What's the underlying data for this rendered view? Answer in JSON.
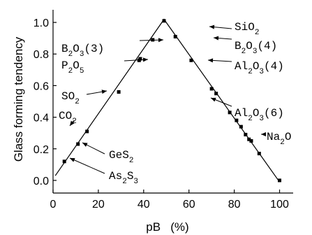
{
  "chart_data": {
    "type": "scatter",
    "xlabel": "pB   (%)",
    "ylabel": "Glass forming tendency",
    "xlim": [
      0,
      106
    ],
    "ylim": [
      -0.08,
      1.08
    ],
    "xticks": [
      "0",
      "20",
      "40",
      "60",
      "80",
      "100"
    ],
    "yticks": [
      "0.0",
      "0.2",
      "0.4",
      "0.6",
      "0.8",
      "1.0"
    ],
    "xtick_values": [
      0,
      20,
      40,
      60,
      80,
      100
    ],
    "ytick_values": [
      0.0,
      0.2,
      0.4,
      0.6,
      0.8,
      1.0
    ],
    "grid": false,
    "trend_line": [
      [
        1,
        0.03
      ],
      [
        49,
        1.02
      ],
      [
        100,
        -0.01
      ]
    ],
    "points": [
      {
        "x": 5,
        "y": 0.12
      },
      {
        "x": 11,
        "y": 0.23
      },
      {
        "x": 15,
        "y": 0.31
      },
      {
        "x": 29,
        "y": 0.56
      },
      {
        "x": 38,
        "y": 0.76
      },
      {
        "x": 38.5,
        "y": 0.77
      },
      {
        "x": 44,
        "y": 0.89
      },
      {
        "x": 49,
        "y": 1.01
      },
      {
        "x": 54,
        "y": 0.91
      },
      {
        "x": 61,
        "y": 0.76
      },
      {
        "x": 70,
        "y": 0.58
      },
      {
        "x": 72,
        "y": 0.55
      },
      {
        "x": 78,
        "y": 0.43
      },
      {
        "x": 81,
        "y": 0.38
      },
      {
        "x": 83,
        "y": 0.34
      },
      {
        "x": 85,
        "y": 0.29
      },
      {
        "x": 86.5,
        "y": 0.26
      },
      {
        "x": 87.5,
        "y": 0.25
      },
      {
        "x": 91,
        "y": 0.17
      },
      {
        "x": 100,
        "y": 0.0
      }
    ],
    "annotations": [
      {
        "base": "SiO",
        "sub": [
          "2"
        ],
        "target": [
          49,
          1.02
        ]
      },
      {
        "base": "B",
        "sub": [
          "2",
          "3"
        ],
        "suffix": "(4)",
        "target": [
          54,
          0.91
        ]
      },
      {
        "base": "B",
        "sub": [
          "2",
          "3"
        ],
        "suffix": "(3)",
        "target": [
          44,
          0.89
        ]
      },
      {
        "base": "P",
        "sub": [
          "2",
          "5"
        ],
        "suffix": "",
        "target": [
          38,
          0.76
        ]
      },
      {
        "base": "Al",
        "sub": [
          "2",
          "3"
        ],
        "suffix": "(4)",
        "target": [
          61,
          0.76
        ]
      },
      {
        "base": "SO",
        "sub": [
          "2"
        ],
        "target": [
          29,
          0.56
        ]
      },
      {
        "base": "Al",
        "sub": [
          "2",
          "3"
        ],
        "suffix": "(6)",
        "target": [
          72,
          0.55
        ]
      },
      {
        "base": "CO",
        "sub": [
          "2"
        ],
        "target": [
          15,
          0.31
        ]
      },
      {
        "base": "Na",
        "sub": [
          "2"
        ],
        "suffix": "O",
        "target": [
          91,
          0.17
        ]
      },
      {
        "base": "GeS",
        "sub": [
          "2"
        ],
        "target": [
          11,
          0.23
        ]
      },
      {
        "base": "As",
        "sub": [
          "2",
          "3"
        ],
        "suffix": "",
        "target": [
          5,
          0.12
        ]
      }
    ]
  }
}
